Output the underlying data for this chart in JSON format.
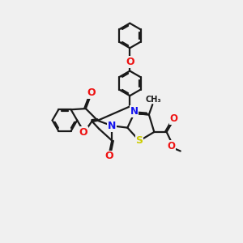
{
  "background_color": "#f0f0f0",
  "bond_color": "#1a1a1a",
  "atom_colors": {
    "O": "#ee1111",
    "N": "#1111ee",
    "S": "#cccc00",
    "C": "#1a1a1a"
  },
  "figsize": [
    3.0,
    3.0
  ],
  "dpi": 100
}
